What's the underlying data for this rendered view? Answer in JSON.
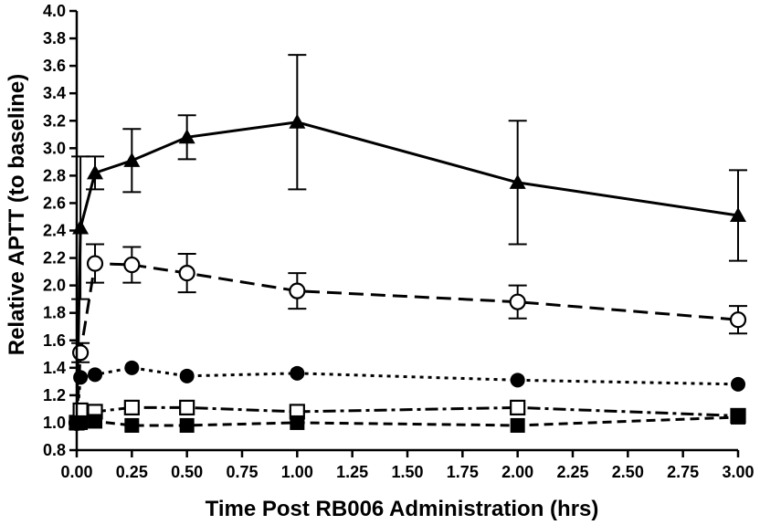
{
  "chart_data": {
    "type": "line",
    "title": "",
    "xlabel": "Time Post RB006 Administration (hrs)",
    "ylabel": "Relative APTT (to baseline)",
    "xlim": [
      0,
      3
    ],
    "ylim": [
      0.8,
      4.0
    ],
    "x_ticks": [
      "0.00",
      "0.25",
      "0.50",
      "0.75",
      "1.00",
      "1.25",
      "1.50",
      "1.75",
      "2.00",
      "2.25",
      "2.50",
      "2.75",
      "3.00"
    ],
    "y_ticks": [
      "0.8",
      "1.0",
      "1.2",
      "1.4",
      "1.6",
      "1.8",
      "2.0",
      "2.2",
      "2.4",
      "2.6",
      "2.8",
      "3.0",
      "3.2",
      "3.4",
      "3.6",
      "3.8",
      "4.0"
    ],
    "x_tick_values": [
      0,
      0.25,
      0.5,
      0.75,
      1.0,
      1.25,
      1.5,
      1.75,
      2.0,
      2.25,
      2.5,
      2.75,
      3.0
    ],
    "y_tick_values": [
      0.8,
      1.0,
      1.2,
      1.4,
      1.6,
      1.8,
      2.0,
      2.2,
      2.4,
      2.6,
      2.8,
      3.0,
      3.2,
      3.4,
      3.6,
      3.8,
      4.0
    ],
    "grid": false,
    "legend": "none",
    "series": [
      {
        "marker": "filled-triangle",
        "line": "solid",
        "color": "#000000",
        "x": [
          0,
          0.017,
          0.083,
          0.25,
          0.5,
          1.0,
          2.0,
          3.0
        ],
        "y": [
          1.0,
          2.42,
          2.82,
          2.91,
          3.08,
          3.19,
          2.75,
          2.51
        ],
        "err": [
          0,
          0.52,
          0.12,
          0.23,
          0.16,
          0.49,
          0.45,
          0.33
        ]
      },
      {
        "marker": "open-circle",
        "line": "long-dash",
        "color": "#000000",
        "x": [
          0,
          0.017,
          0.083,
          0.25,
          0.5,
          1.0,
          2.0,
          3.0
        ],
        "y": [
          1.0,
          1.51,
          2.16,
          2.15,
          2.09,
          1.96,
          1.88,
          1.75
        ],
        "err": [
          0,
          0.07,
          0.14,
          0.13,
          0.14,
          0.13,
          0.12,
          0.1
        ]
      },
      {
        "marker": "filled-circle",
        "line": "dotted",
        "color": "#000000",
        "x": [
          0,
          0.017,
          0.083,
          0.25,
          0.5,
          1.0,
          2.0,
          3.0
        ],
        "y": [
          1.0,
          1.33,
          1.35,
          1.4,
          1.34,
          1.36,
          1.31,
          1.28
        ],
        "err": [
          0,
          0,
          0,
          0,
          0,
          0,
          0,
          0
        ]
      },
      {
        "marker": "open-square",
        "line": "dash-dot",
        "color": "#000000",
        "x": [
          0,
          0.017,
          0.083,
          0.25,
          0.5,
          1.0,
          2.0,
          3.0
        ],
        "y": [
          1.0,
          1.09,
          1.08,
          1.11,
          1.11,
          1.08,
          1.11,
          1.05
        ],
        "err": [
          0,
          0,
          0,
          0,
          0,
          0,
          0,
          0
        ]
      },
      {
        "marker": "filled-square",
        "line": "dashed",
        "color": "#000000",
        "x": [
          0,
          0.017,
          0.083,
          0.25,
          0.5,
          1.0,
          2.0,
          3.0
        ],
        "y": [
          1.0,
          1.0,
          1.01,
          0.98,
          0.98,
          1.0,
          0.98,
          1.04
        ],
        "err": [
          0,
          0,
          0,
          0,
          0,
          0,
          0,
          0
        ]
      }
    ]
  }
}
